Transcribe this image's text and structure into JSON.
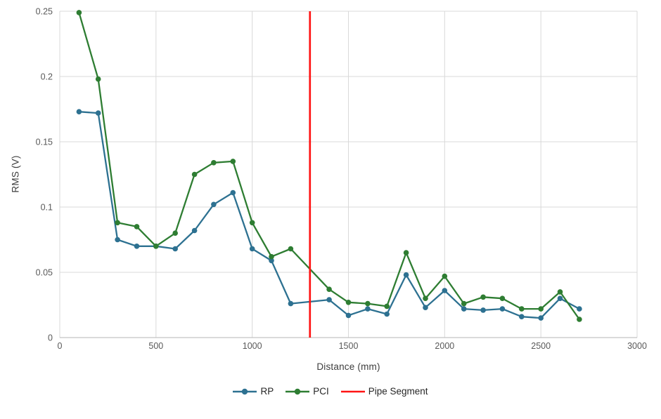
{
  "chart_data": {
    "type": "line",
    "title": "",
    "xlabel": "Distance (mm)",
    "ylabel": "RMS (V)",
    "xlim": [
      0,
      3000
    ],
    "ylim": [
      0,
      0.25
    ],
    "x_ticks": [
      0,
      500,
      1000,
      1500,
      2000,
      2500,
      3000
    ],
    "x_tick_labels": [
      "0",
      "500",
      "1000",
      "1500",
      "2000",
      "2500",
      "3000"
    ],
    "y_ticks": [
      0,
      0.05,
      0.1,
      0.15,
      0.2,
      0.25
    ],
    "y_tick_labels": [
      "0",
      "0.05",
      "0.1",
      "0.15",
      "0.2",
      "0.25"
    ],
    "grid": true,
    "legend_position": "bottom",
    "x": [
      100,
      200,
      300,
      400,
      500,
      600,
      700,
      800,
      900,
      1000,
      1100,
      1200,
      1400,
      1500,
      1600,
      1700,
      1800,
      1900,
      2000,
      2100,
      2200,
      2300,
      2400,
      2500,
      2600,
      2700
    ],
    "series": [
      {
        "name": "RP",
        "color": "#2d7191",
        "marker": "circle",
        "values": [
          0.173,
          0.172,
          0.075,
          0.07,
          0.07,
          0.068,
          0.082,
          0.102,
          0.111,
          0.068,
          0.059,
          0.026,
          0.029,
          0.017,
          0.022,
          0.018,
          0.048,
          0.023,
          0.036,
          0.022,
          0.021,
          0.022,
          0.016,
          0.015,
          0.03,
          0.022
        ]
      },
      {
        "name": "PCI",
        "color": "#2e7d32",
        "marker": "circle",
        "values": [
          0.249,
          0.198,
          0.088,
          0.085,
          0.07,
          0.08,
          0.125,
          0.134,
          0.135,
          0.088,
          0.062,
          0.068,
          0.037,
          0.027,
          0.026,
          0.024,
          0.065,
          0.03,
          0.047,
          0.026,
          0.031,
          0.03,
          0.022,
          0.022,
          0.035,
          0.014
        ]
      }
    ],
    "vline": {
      "name": "Pipe Segment",
      "color": "#ff1414",
      "x": 1300
    }
  },
  "style": {
    "gridline_color": "#d9d9d9",
    "axis_line_color": "#c3c3c3",
    "tick_label_color": "#595959"
  }
}
